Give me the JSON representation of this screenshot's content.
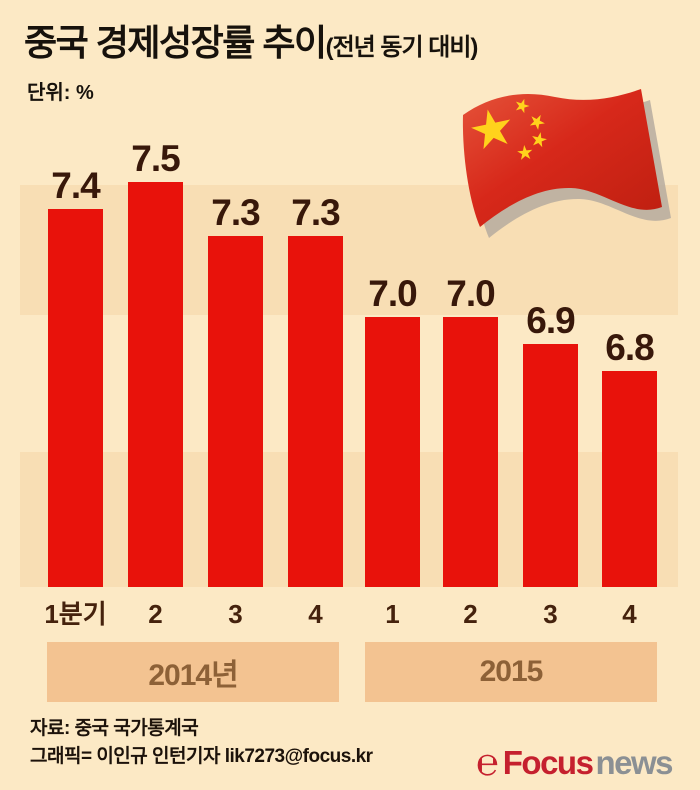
{
  "header": {
    "title": "중국 경제성장률 추이",
    "title_suffix": "(전년 동기 대비)",
    "unit_label": "단위: %"
  },
  "chart_data": {
    "type": "bar",
    "title": "중국 경제성장률 추이 (전년 동기 대비)",
    "unit": "%",
    "categories": [
      "1분기",
      "2",
      "3",
      "4",
      "1",
      "2",
      "3",
      "4"
    ],
    "values": [
      7.4,
      7.5,
      7.3,
      7.3,
      7.0,
      7.0,
      6.9,
      6.8
    ],
    "value_labels": [
      "7.4",
      "7.5",
      "7.3",
      "7.3",
      "7.0",
      "7.0",
      "6.9",
      "6.8"
    ],
    "groups": [
      {
        "label": "2014년",
        "quarters": [
          "1분기",
          "2",
          "3",
          "4"
        ]
      },
      {
        "label": "2015",
        "quarters": [
          "1",
          "2",
          "3",
          "4"
        ]
      }
    ],
    "ylim": [
      6.0,
      7.6
    ],
    "grid": "off",
    "legend": "none",
    "bar_color": "#e8120b",
    "value_label_color": "#38180a"
  },
  "decor": {
    "flag_icon": "china-flag-icon",
    "colors": {
      "background": "#fce9c5",
      "stripe": "#f8deb4",
      "year_band": "#f3c391",
      "year_text": "#8d6137",
      "flag_red": "#d7281a",
      "star_yellow": "#ffd21c",
      "logo_red": "#c5202e",
      "logo_gray": "#8b9094"
    }
  },
  "footer": {
    "source": "자료: 중국 국가통계국",
    "credit": "그래픽= 이인규 인턴기자 lik7273@focus.kr",
    "logo": {
      "brand": "Focus",
      "suffix": "news"
    }
  }
}
